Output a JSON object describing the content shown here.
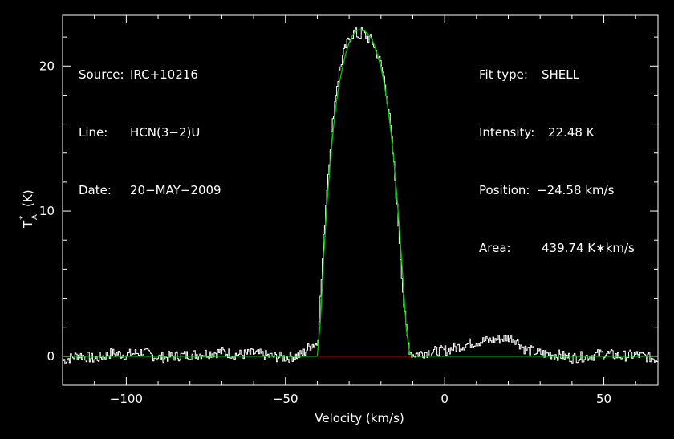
{
  "header_left": {
    "source_label": "Source:",
    "source_value": "IRC+10216",
    "line_label": "Line:",
    "line_value": "HCN(3−2)U",
    "date_label": "Date:",
    "date_value": "20−MAY−2009"
  },
  "header_right": {
    "fit_label": "Fit type:",
    "fit_value": "SHELL",
    "intensity_label": "Intensity:",
    "intensity_value": "22.48 K",
    "position_label": "Position:",
    "position_value": "−24.58 km/s",
    "area_label": "Area:",
    "area_value": "439.74 K∗km/s"
  },
  "chart_data": {
    "type": "line",
    "title": "",
    "xlabel": "Velocity (km/s)",
    "ylabel": "T*A (K)",
    "ylabel_main": "T",
    "ylabel_sup": "*",
    "ylabel_sub": "A",
    "ylabel_unit": "(K)",
    "xlim": [
      -120,
      67
    ],
    "ylim": [
      -2,
      23.5
    ],
    "xticks": [
      -100,
      -50,
      0,
      50
    ],
    "xtick_labels": [
      "−100",
      "−50",
      "0",
      "50"
    ],
    "yticks": [
      0,
      10,
      20
    ],
    "ytick_labels": [
      "0",
      "10",
      "20"
    ],
    "grid": false,
    "colors": {
      "background": "#000000",
      "spectrum": "#ffffff",
      "fit": "#00cc00",
      "fit_baseline": "#cc0000",
      "axes": "#ffffff"
    },
    "series": [
      {
        "role": "observed spectrum",
        "x": [
          -120,
          -115,
          -110,
          -105,
          -100,
          -95,
          -90,
          -85,
          -80,
          -75,
          -70,
          -65,
          -60,
          -55,
          -50,
          -45,
          -42,
          -40,
          -39,
          -38,
          -37,
          -36,
          -35,
          -34,
          -33,
          -32,
          -31,
          -30,
          -29,
          -28,
          -27,
          -26,
          -25,
          -24,
          -23,
          -22,
          -21,
          -20,
          -19,
          -18,
          -17,
          -16,
          -15,
          -14,
          -13,
          -12,
          -11,
          -10,
          -8,
          -5,
          0,
          5,
          10,
          15,
          20,
          22,
          25,
          30,
          35,
          40,
          45,
          50,
          55,
          60,
          67
        ],
        "y": [
          -0.3,
          0.1,
          -0.2,
          0.2,
          0.1,
          0.3,
          -0.1,
          0.0,
          0.1,
          0.2,
          0.3,
          0.1,
          0.2,
          0.0,
          -0.1,
          0.1,
          0.8,
          0.9,
          4.5,
          8.5,
          11.8,
          14.5,
          16.8,
          18.6,
          19.8,
          20.8,
          21.4,
          21.9,
          22.2,
          22.3,
          22.0,
          22.4,
          22.1,
          21.9,
          21.8,
          21.2,
          20.7,
          20.0,
          19.0,
          17.5,
          15.5,
          13.0,
          10.2,
          7.0,
          3.7,
          1.5,
          0.3,
          0.1,
          0.2,
          0.3,
          0.4,
          0.7,
          1.0,
          1.1,
          1.3,
          1.2,
          0.5,
          0.2,
          0.1,
          -0.1,
          0.0,
          0.2,
          0.0,
          0.1,
          -0.2
        ]
      },
      {
        "role": "shell fit",
        "x": [
          -120,
          -40,
          -39,
          -38,
          -37,
          -36,
          -35,
          -34,
          -33,
          -32,
          -31,
          -30,
          -29,
          -28,
          -27,
          -26,
          -25,
          -24,
          -23,
          -22,
          -21,
          -20,
          -19,
          -18,
          -17,
          -16,
          -15,
          -14,
          -13,
          -12,
          -11,
          -10,
          67
        ],
        "y": [
          0,
          0,
          2.5,
          6.8,
          10.3,
          13.2,
          15.6,
          17.5,
          18.9,
          20.0,
          20.9,
          21.6,
          22.1,
          22.4,
          22.5,
          22.48,
          22.4,
          22.2,
          21.9,
          21.4,
          20.7,
          19.9,
          18.8,
          17.4,
          15.7,
          13.6,
          11.1,
          8.2,
          5.0,
          1.8,
          0.2,
          0,
          0
        ]
      }
    ],
    "fit_baseline_range": [
      -40,
      -10
    ]
  }
}
